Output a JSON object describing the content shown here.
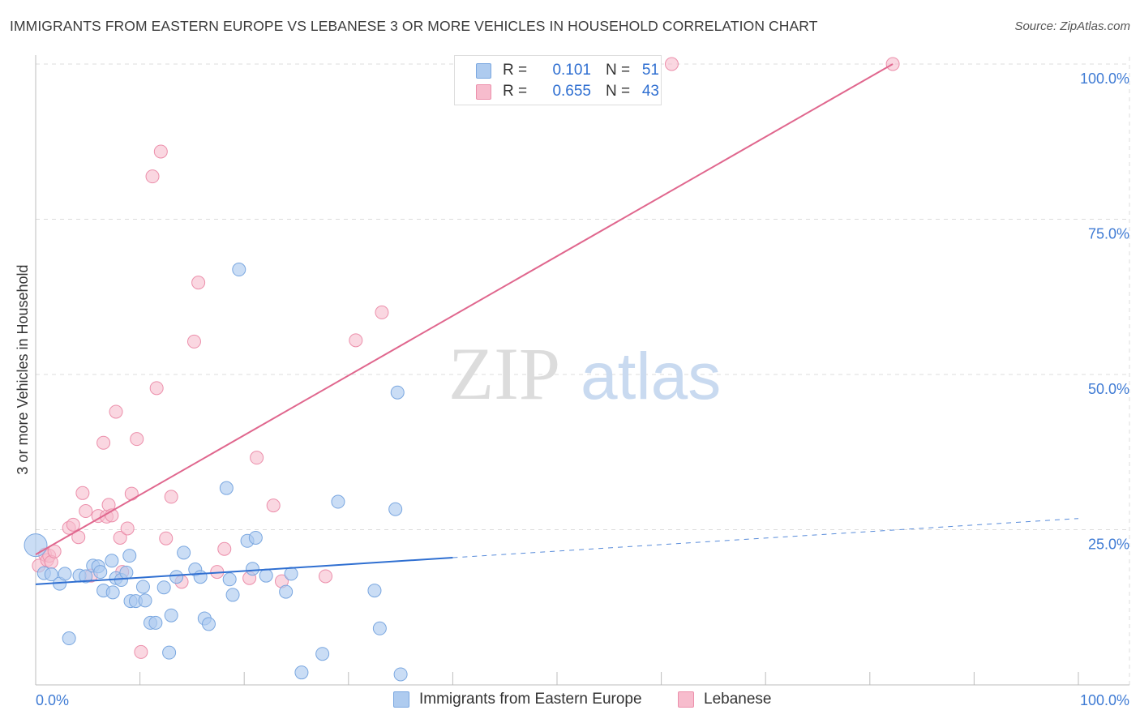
{
  "header": {
    "title": "IMMIGRANTS FROM EASTERN EUROPE VS LEBANESE 3 OR MORE VEHICLES IN HOUSEHOLD CORRELATION CHART",
    "source": "Source: ZipAtlas.com"
  },
  "watermark": {
    "zip": "ZIP",
    "atlas": "atlas"
  },
  "legend": {
    "blue": {
      "r_label": "R =",
      "r_value": "0.101",
      "n_label": "N =",
      "n_value": "51"
    },
    "pink": {
      "r_label": "R =",
      "r_value": "0.655",
      "n_label": "N =",
      "n_value": "43"
    }
  },
  "colors": {
    "blue_fill": "#aecbef",
    "blue_stroke": "#7aa7e0",
    "blue_line": "#2f6fd1",
    "pink_fill": "#f7bccd",
    "pink_stroke": "#ec8fab",
    "pink_line": "#e0678e",
    "grid": "#dcdcdc",
    "tick_label": "#3f7bd4"
  },
  "chart_data": {
    "type": "scatter",
    "title": "IMMIGRANTS FROM EASTERN EUROPE VS LEBANESE 3 OR MORE VEHICLES IN HOUSEHOLD CORRELATION CHART",
    "xlabel": "",
    "ylabel": "3 or more Vehicles in Household",
    "xlim": [
      0,
      100
    ],
    "ylim": [
      0,
      100
    ],
    "x_tick_labels": [
      "0.0%",
      "100.0%"
    ],
    "y_ticks": [
      25,
      50,
      75,
      100
    ],
    "y_tick_labels": [
      "25.0%",
      "50.0%",
      "75.0%",
      "100.0%"
    ],
    "grid": true,
    "legend_position": "bottom-center",
    "series": [
      {
        "name": "Immigrants from Eastern Europe",
        "color": "blue",
        "R": 0.101,
        "N": 51,
        "trend": {
          "x0": 0,
          "y0": 16.2,
          "x1": 40,
          "y1": 20.5,
          "dashed_to_x": 100,
          "dashed_to_y": 26.8
        },
        "points": [
          [
            0.0,
            22.5
          ],
          [
            0.8,
            18.0
          ],
          [
            1.5,
            17.8
          ],
          [
            2.3,
            16.3
          ],
          [
            2.8,
            17.9
          ],
          [
            3.2,
            7.5
          ],
          [
            4.2,
            17.6
          ],
          [
            4.8,
            17.5
          ],
          [
            5.5,
            19.2
          ],
          [
            6.0,
            19.1
          ],
          [
            6.2,
            18.2
          ],
          [
            6.5,
            15.2
          ],
          [
            7.3,
            20.0
          ],
          [
            7.4,
            14.9
          ],
          [
            7.7,
            17.2
          ],
          [
            8.2,
            16.9
          ],
          [
            8.7,
            18.1
          ],
          [
            9.0,
            20.8
          ],
          [
            9.1,
            13.5
          ],
          [
            9.6,
            13.5
          ],
          [
            10.3,
            15.8
          ],
          [
            10.5,
            13.6
          ],
          [
            11.0,
            10.0
          ],
          [
            11.5,
            10.0
          ],
          [
            12.3,
            15.7
          ],
          [
            12.8,
            5.2
          ],
          [
            13.0,
            11.2
          ],
          [
            13.5,
            17.4
          ],
          [
            14.2,
            21.3
          ],
          [
            15.3,
            18.6
          ],
          [
            15.8,
            17.4
          ],
          [
            16.2,
            10.7
          ],
          [
            16.6,
            9.8
          ],
          [
            18.3,
            31.7
          ],
          [
            18.6,
            17.0
          ],
          [
            18.9,
            14.5
          ],
          [
            19.5,
            66.9
          ],
          [
            20.3,
            23.2
          ],
          [
            20.8,
            18.7
          ],
          [
            21.1,
            23.7
          ],
          [
            22.1,
            17.6
          ],
          [
            24.0,
            15.0
          ],
          [
            24.5,
            17.9
          ],
          [
            25.5,
            2.0
          ],
          [
            27.5,
            5.0
          ],
          [
            29.0,
            29.5
          ],
          [
            32.5,
            15.2
          ],
          [
            33.0,
            9.1
          ],
          [
            34.5,
            28.3
          ],
          [
            34.7,
            47.1
          ],
          [
            35.0,
            1.7
          ]
        ]
      },
      {
        "name": "Lebanese",
        "color": "pink",
        "R": 0.655,
        "N": 43,
        "trend": {
          "x0": 0,
          "y0": 21.0,
          "x1": 82.2,
          "y1": 100.0
        },
        "points": [
          [
            0.3,
            19.2
          ],
          [
            0.9,
            21.0
          ],
          [
            1.1,
            20.1
          ],
          [
            1.3,
            20.8
          ],
          [
            1.5,
            19.8
          ],
          [
            1.8,
            21.5
          ],
          [
            3.2,
            25.3
          ],
          [
            3.6,
            25.8
          ],
          [
            4.1,
            23.8
          ],
          [
            4.5,
            30.9
          ],
          [
            4.8,
            28.0
          ],
          [
            5.3,
            17.6
          ],
          [
            6.0,
            27.2
          ],
          [
            6.5,
            39.0
          ],
          [
            6.8,
            27.1
          ],
          [
            7.0,
            29.0
          ],
          [
            7.3,
            27.3
          ],
          [
            7.7,
            44.0
          ],
          [
            8.1,
            23.7
          ],
          [
            8.3,
            18.2
          ],
          [
            8.8,
            25.2
          ],
          [
            9.2,
            30.8
          ],
          [
            9.7,
            39.6
          ],
          [
            10.1,
            5.3
          ],
          [
            11.2,
            81.9
          ],
          [
            11.6,
            47.8
          ],
          [
            12.0,
            85.9
          ],
          [
            12.5,
            23.6
          ],
          [
            13.0,
            30.3
          ],
          [
            14.0,
            16.6
          ],
          [
            15.2,
            55.3
          ],
          [
            15.6,
            64.8
          ],
          [
            17.4,
            18.2
          ],
          [
            18.1,
            21.9
          ],
          [
            20.5,
            17.2
          ],
          [
            21.2,
            36.6
          ],
          [
            22.8,
            28.9
          ],
          [
            23.6,
            16.7
          ],
          [
            27.8,
            17.5
          ],
          [
            30.7,
            55.5
          ],
          [
            33.2,
            60.0
          ],
          [
            61.0,
            100.0
          ],
          [
            82.2,
            100.0
          ]
        ]
      }
    ]
  },
  "bottom_legend": {
    "blue_label": "Immigrants from Eastern Europe",
    "pink_label": "Lebanese"
  }
}
